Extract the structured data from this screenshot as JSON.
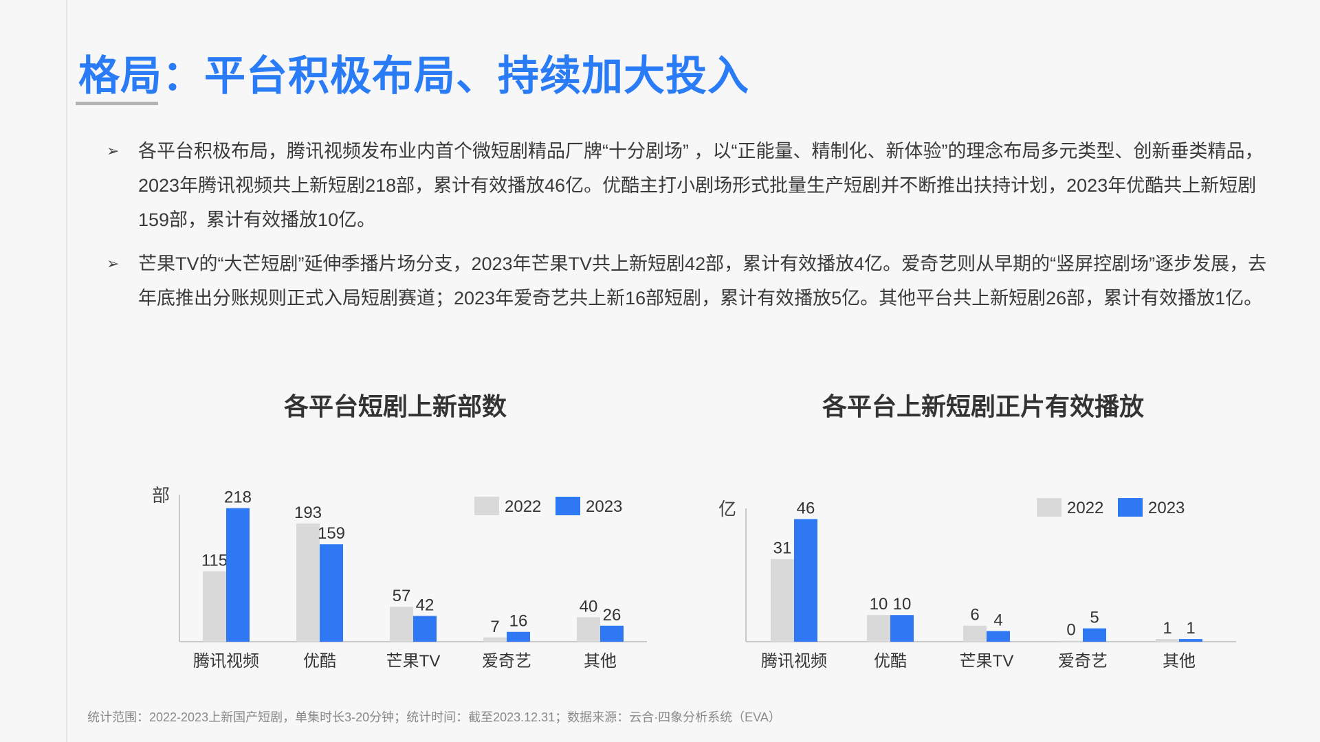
{
  "title": "格局：平台积极布局、持续加大投入",
  "bullets": [
    {
      "marker": "➢",
      "text": "各平台积极布局，腾讯视频发布业内首个微短剧精品厂牌“十分剧场” ，以“正能量、精制化、新体验”的理念布局多元类型、创新垂类精品， 2023年腾讯视频共上新短剧218部，累计有效播放46亿。优酷主打小剧场形式批量生产短剧并不断推出扶持计划，2023年优酷共上新短剧159部，累计有效播放10亿。"
    },
    {
      "marker": "➢",
      "text": "芒果TV的“大芒短剧”延伸季播片场分支，2023年芒果TV共上新短剧42部，累计有效播放4亿。爱奇艺则从早期的“竖屏控剧场”逐步发展，去年底推出分账规则正式入局短剧赛道；2023年爱奇艺共上新16部短剧，累计有效播放5亿。其他平台共上新短剧26部，累计有效播放1亿。"
    }
  ],
  "colors": {
    "accent": "#2a7cf6",
    "series_2022": "#d9d9d9",
    "series_2023": "#2f78f4",
    "axis": "#c8c8c8"
  },
  "chart_data": [
    {
      "type": "bar",
      "title": "各平台短剧上新部数",
      "ylabel": "部",
      "categories": [
        "腾讯视频",
        "优酷",
        "芒果TV",
        "爱奇艺",
        "其他"
      ],
      "series": [
        {
          "name": "2022",
          "values": [
            115,
            193,
            57,
            7,
            40
          ]
        },
        {
          "name": "2023",
          "values": [
            218,
            159,
            42,
            16,
            26
          ]
        }
      ],
      "ylim": [
        0,
        240
      ],
      "legend": "top-right",
      "grid": false
    },
    {
      "type": "bar",
      "title": "各平台上新短剧正片有效播放",
      "ylabel": "亿",
      "categories": [
        "腾讯视频",
        "优酷",
        "芒果TV",
        "爱奇艺",
        "其他"
      ],
      "series": [
        {
          "name": "2022",
          "values": [
            31,
            10,
            6,
            0,
            1
          ]
        },
        {
          "name": "2023",
          "values": [
            46,
            10,
            4,
            5,
            1
          ]
        }
      ],
      "ylim": [
        0,
        50
      ],
      "legend": "top-right",
      "grid": false
    }
  ],
  "footer": "统计范围：2022-2023上新国产短剧，单集时长3-20分钟；统计时间：截至2023.12.31；数据来源：云合·四象分析系统（EVA）"
}
